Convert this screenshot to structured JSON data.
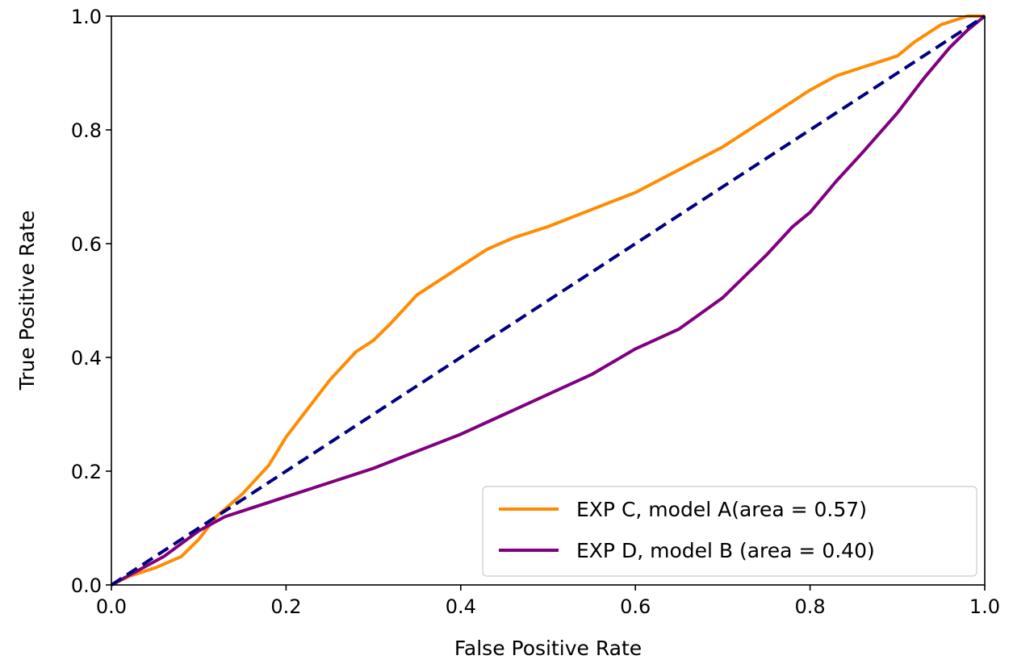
{
  "chart_data": {
    "type": "line",
    "title": "",
    "xlabel": "False Positive Rate",
    "ylabel": "True Positive Rate",
    "xlim": [
      0.0,
      1.0
    ],
    "ylim": [
      0.0,
      1.0
    ],
    "xticks": [
      "0.0",
      "0.2",
      "0.4",
      "0.6",
      "0.8",
      "1.0"
    ],
    "yticks": [
      "0.0",
      "0.2",
      "0.4",
      "0.6",
      "0.8",
      "1.0"
    ],
    "grid": false,
    "legend_position": "lower-right",
    "series": [
      {
        "name": "EXP C, model A(area = 0.57)",
        "color": "#ff8c00",
        "style": "solid",
        "x": [
          0.0,
          0.02,
          0.05,
          0.08,
          0.1,
          0.12,
          0.15,
          0.18,
          0.2,
          0.22,
          0.25,
          0.28,
          0.3,
          0.32,
          0.35,
          0.38,
          0.4,
          0.43,
          0.46,
          0.5,
          0.55,
          0.6,
          0.65,
          0.7,
          0.75,
          0.8,
          0.83,
          0.86,
          0.9,
          0.92,
          0.95,
          0.98,
          1.0
        ],
        "y": [
          0.0,
          0.015,
          0.03,
          0.05,
          0.08,
          0.12,
          0.16,
          0.21,
          0.26,
          0.3,
          0.36,
          0.41,
          0.43,
          0.46,
          0.51,
          0.54,
          0.56,
          0.59,
          0.61,
          0.63,
          0.66,
          0.69,
          0.73,
          0.77,
          0.82,
          0.87,
          0.895,
          0.91,
          0.93,
          0.955,
          0.985,
          1.0,
          1.0
        ]
      },
      {
        "name": "EXP D, model B (area = 0.40)",
        "color": "#800080",
        "style": "solid",
        "x": [
          0.0,
          0.03,
          0.06,
          0.1,
          0.13,
          0.17,
          0.2,
          0.25,
          0.3,
          0.35,
          0.4,
          0.45,
          0.5,
          0.55,
          0.6,
          0.65,
          0.7,
          0.75,
          0.78,
          0.8,
          0.83,
          0.86,
          0.9,
          0.93,
          0.96,
          0.98,
          1.0
        ],
        "y": [
          0.0,
          0.025,
          0.05,
          0.095,
          0.12,
          0.14,
          0.155,
          0.18,
          0.205,
          0.235,
          0.265,
          0.3,
          0.335,
          0.37,
          0.415,
          0.45,
          0.505,
          0.58,
          0.63,
          0.655,
          0.71,
          0.76,
          0.83,
          0.89,
          0.945,
          0.975,
          1.0
        ]
      },
      {
        "name": "",
        "color": "#000080",
        "style": "dashed",
        "x": [
          0.0,
          1.0
        ],
        "y": [
          0.0,
          1.0
        ]
      }
    ]
  }
}
